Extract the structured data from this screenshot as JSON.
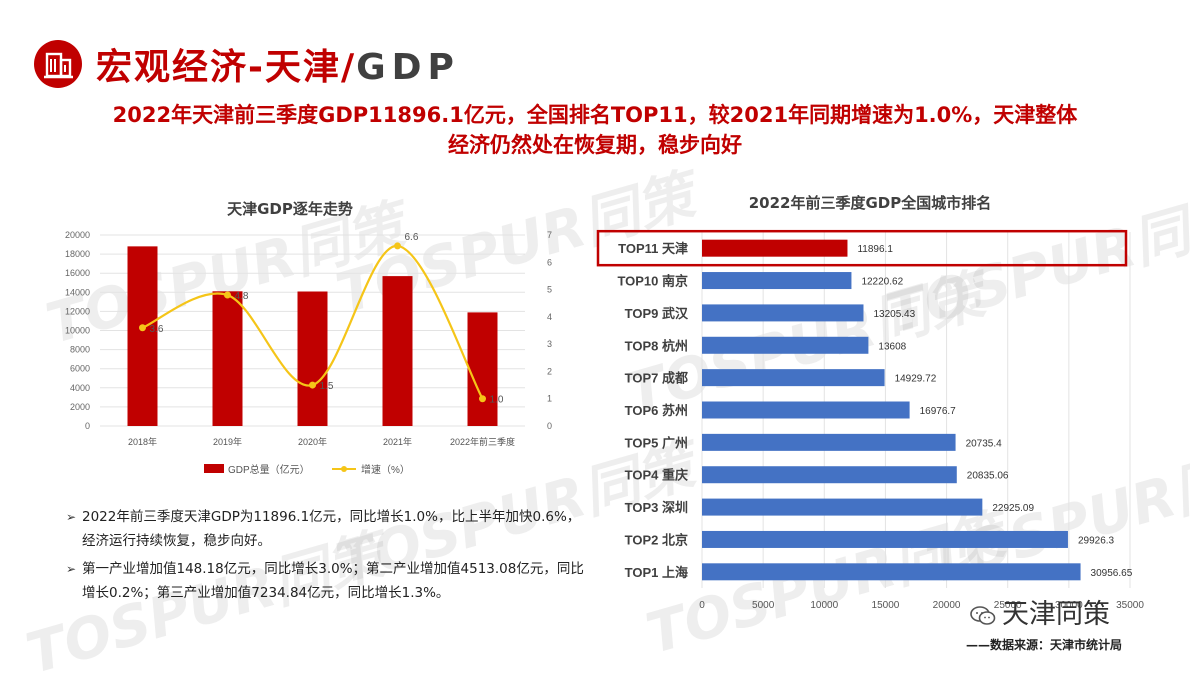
{
  "header": {
    "title_cn": "宏观经济-天津",
    "slash": "/",
    "title_en": "GDP",
    "icon": "building-icon",
    "accent_color": "#c00000"
  },
  "headline": {
    "line1": "2022年天津前三季度GDP11896.1亿元，全国排名TOP11，较2021年同期增速为1.0%，天津整体",
    "line2": "经济仍然处在恢复期，稳步向好"
  },
  "chart_data": [
    {
      "type": "bar",
      "title": "天津GDP逐年走势",
      "categories": [
        "2018年",
        "2019年",
        "2020年",
        "2021年",
        "2022年前三季度"
      ],
      "series": [
        {
          "name": "GDP总量（亿元）",
          "type": "bar",
          "axis": "left",
          "color": "#c00000",
          "values": [
            18810,
            14104,
            14084,
            15695,
            11896.1
          ]
        },
        {
          "name": "增速（%）",
          "type": "line",
          "axis": "right",
          "color": "#f5c518",
          "values": [
            3.6,
            4.8,
            1.5,
            6.6,
            1.0
          ],
          "labels": [
            "3.6",
            "4.8",
            "1.5",
            "6.6",
            "1.0"
          ]
        }
      ],
      "ylim_left": [
        0,
        20000
      ],
      "yticks_left": [
        "0",
        "2000",
        "4000",
        "6000",
        "8000",
        "10000",
        "12000",
        "14000",
        "16000",
        "18000",
        "20000"
      ],
      "ylim_right": [
        0,
        7
      ],
      "yticks_right": [
        "0",
        "1",
        "2",
        "3",
        "4",
        "5",
        "6",
        "7"
      ],
      "grid": true,
      "legend_position": "bottom"
    },
    {
      "type": "bar",
      "orientation": "horizontal",
      "title": "2022年前三季度GDP全国城市排名",
      "categories": [
        "TOP11 天津",
        "TOP10 南京",
        "TOP9 武汉",
        "TOP8 杭州",
        "TOP7 成都",
        "TOP6 苏州",
        "TOP5 广州",
        "TOP4 重庆",
        "TOP3 深圳",
        "TOP2 北京",
        "TOP1 上海"
      ],
      "values": [
        11896.1,
        12220.62,
        13205.43,
        13608,
        14929.72,
        16976.7,
        20735.4,
        20835.06,
        22925.09,
        29926.3,
        30956.65
      ],
      "value_labels": [
        "11896.1",
        "12220.62",
        "13205.43",
        "13608",
        "14929.72",
        "16976.7",
        "20735.4",
        "20835.06",
        "22925.09",
        "29926.3",
        "30956.65"
      ],
      "highlight_index": 0,
      "highlight_color": "#c00000",
      "bar_color": "#4472c4",
      "xlim": [
        0,
        35000
      ],
      "xticks": [
        "0",
        "5000",
        "10000",
        "15000",
        "20000",
        "25000",
        "30000",
        "35000"
      ],
      "grid": true
    }
  ],
  "bullets": [
    "2022年前三季度天津GDP为11896.1亿元，同比增长1.0%，比上半年加快0.6%，经济运行持续恢复，稳步向好。",
    "第一产业增加值148.18亿元，同比增长3.0%；第二产业增加值4513.08亿元，同比增长0.2%；第三产业增加值7234.84亿元，同比增长1.3%。"
  ],
  "bullet_mark": "➢",
  "footer": {
    "wechat_label": "天津同策",
    "wechat_icon": "wechat-icon",
    "source": "——数据来源：天津市统计局"
  },
  "watermark": {
    "text": "TOSPUR同策"
  }
}
